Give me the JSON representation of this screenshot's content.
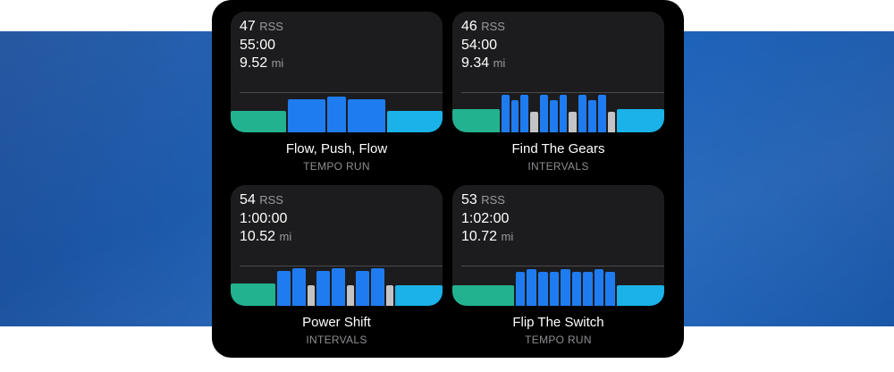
{
  "colors": {
    "warmup": "#22b28f",
    "work": "#1f7cf0",
    "recovery": "#c4c4c6",
    "cooldown": "#1ab2e8"
  },
  "workouts": [
    {
      "rss": "47",
      "rss_unit": "RSS",
      "duration": "55:00",
      "distance": "9.52",
      "distance_unit": "mi",
      "title": "Flow, Push, Flow",
      "type": "TEMPO RUN",
      "segments": [
        {
          "kind": "warmup",
          "duration": 6,
          "intensity": 0.55
        },
        {
          "kind": "work",
          "duration": 4,
          "intensity": 0.85
        },
        {
          "kind": "work",
          "duration": 2,
          "intensity": 0.9
        },
        {
          "kind": "work",
          "duration": 4,
          "intensity": 0.85
        },
        {
          "kind": "cooldown",
          "duration": 6,
          "intensity": 0.55
        }
      ]
    },
    {
      "rss": "46",
      "rss_unit": "RSS",
      "duration": "54:00",
      "distance": "9.34",
      "distance_unit": "mi",
      "title": "Find The Gears",
      "type": "INTERVALS",
      "segments": [
        {
          "kind": "warmup",
          "duration": 6,
          "intensity": 0.58
        },
        {
          "kind": "work",
          "duration": 1,
          "intensity": 0.95
        },
        {
          "kind": "work",
          "duration": 1,
          "intensity": 0.82
        },
        {
          "kind": "work",
          "duration": 1,
          "intensity": 0.95
        },
        {
          "kind": "recovery",
          "duration": 1,
          "intensity": 0.52
        },
        {
          "kind": "work",
          "duration": 1,
          "intensity": 0.95
        },
        {
          "kind": "work",
          "duration": 1,
          "intensity": 0.82
        },
        {
          "kind": "work",
          "duration": 1,
          "intensity": 0.95
        },
        {
          "kind": "recovery",
          "duration": 1,
          "intensity": 0.52
        },
        {
          "kind": "work",
          "duration": 1,
          "intensity": 0.95
        },
        {
          "kind": "work",
          "duration": 1,
          "intensity": 0.82
        },
        {
          "kind": "work",
          "duration": 1,
          "intensity": 0.95
        },
        {
          "kind": "recovery",
          "duration": 1,
          "intensity": 0.52
        },
        {
          "kind": "cooldown",
          "duration": 6,
          "intensity": 0.58
        }
      ]
    },
    {
      "rss": "54",
      "rss_unit": "RSS",
      "duration": "1:00:00",
      "distance": "10.52",
      "distance_unit": "mi",
      "title": "Power Shift",
      "type": "INTERVALS",
      "segments": [
        {
          "kind": "warmup",
          "duration": 5,
          "intensity": 0.57
        },
        {
          "kind": "work",
          "duration": 1.5,
          "intensity": 0.88
        },
        {
          "kind": "work",
          "duration": 1.5,
          "intensity": 0.95
        },
        {
          "kind": "recovery",
          "duration": 0.8,
          "intensity": 0.52
        },
        {
          "kind": "work",
          "duration": 1.5,
          "intensity": 0.88
        },
        {
          "kind": "work",
          "duration": 1.5,
          "intensity": 0.95
        },
        {
          "kind": "recovery",
          "duration": 0.8,
          "intensity": 0.52
        },
        {
          "kind": "work",
          "duration": 1.5,
          "intensity": 0.88
        },
        {
          "kind": "work",
          "duration": 1.5,
          "intensity": 0.95
        },
        {
          "kind": "recovery",
          "duration": 0.8,
          "intensity": 0.52
        },
        {
          "kind": "cooldown",
          "duration": 5.3,
          "intensity": 0.52
        }
      ]
    },
    {
      "rss": "53",
      "rss_unit": "RSS",
      "duration": "1:02:00",
      "distance": "10.72",
      "distance_unit": "mi",
      "title": "Flip The Switch",
      "type": "TEMPO RUN",
      "segments": [
        {
          "kind": "warmup",
          "duration": 6.5,
          "intensity": 0.52
        },
        {
          "kind": "work",
          "duration": 1,
          "intensity": 0.86
        },
        {
          "kind": "work",
          "duration": 1,
          "intensity": 0.93
        },
        {
          "kind": "work",
          "duration": 1,
          "intensity": 0.86
        },
        {
          "kind": "work",
          "duration": 1,
          "intensity": 0.86
        },
        {
          "kind": "work",
          "duration": 1,
          "intensity": 0.93
        },
        {
          "kind": "work",
          "duration": 1,
          "intensity": 0.86
        },
        {
          "kind": "work",
          "duration": 1,
          "intensity": 0.86
        },
        {
          "kind": "work",
          "duration": 1,
          "intensity": 0.93
        },
        {
          "kind": "work",
          "duration": 1,
          "intensity": 0.86
        },
        {
          "kind": "cooldown",
          "duration": 5,
          "intensity": 0.52
        }
      ]
    }
  ]
}
